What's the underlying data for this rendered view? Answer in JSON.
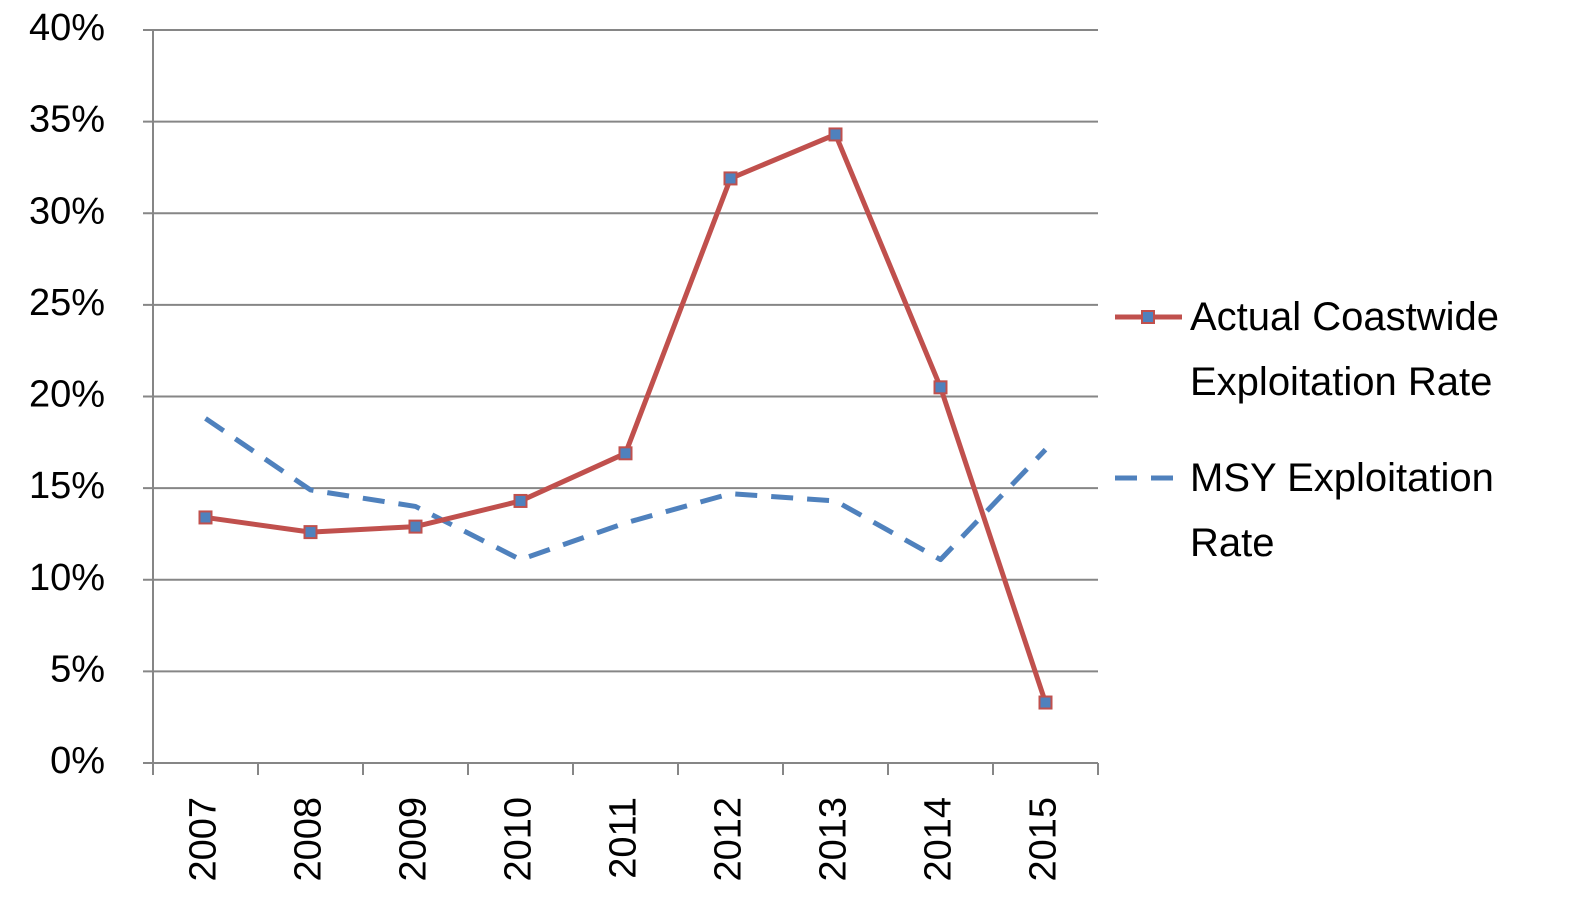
{
  "chart_data": {
    "type": "line",
    "categories": [
      "2007",
      "2008",
      "2009",
      "2010",
      "2011",
      "2012",
      "2013",
      "2014",
      "2015"
    ],
    "series": [
      {
        "name": "Actual Coastwide Exploitation Rate",
        "color": "#c0504d",
        "marker_color": "#4f81bd",
        "dashed": false,
        "values": [
          13.4,
          12.6,
          12.9,
          14.3,
          16.9,
          31.9,
          34.3,
          20.5,
          3.3
        ]
      },
      {
        "name": "MSY Exploitation Rate",
        "color": "#4f81bd",
        "dashed": true,
        "values": [
          18.8,
          14.9,
          14.0,
          11.1,
          13.1,
          14.7,
          14.3,
          11.1,
          17.1
        ]
      }
    ],
    "ylim": [
      0,
      40
    ],
    "yticks": [
      {
        "value": 0,
        "label": "0%"
      },
      {
        "value": 5,
        "label": "5%"
      },
      {
        "value": 10,
        "label": "10%"
      },
      {
        "value": 15,
        "label": "15%"
      },
      {
        "value": 20,
        "label": "20%"
      },
      {
        "value": 25,
        "label": "25%"
      },
      {
        "value": 30,
        "label": "30%"
      },
      {
        "value": 35,
        "label": "35%"
      },
      {
        "value": 40,
        "label": "40%"
      }
    ],
    "grid": true,
    "legend": "right"
  }
}
